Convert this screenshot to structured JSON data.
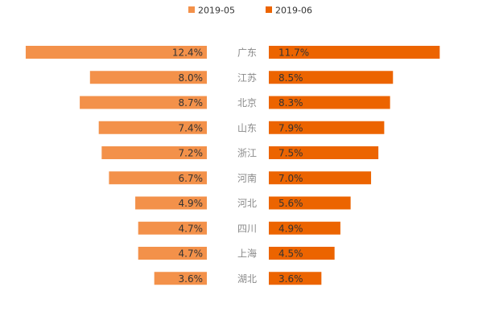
{
  "chart_data": {
    "type": "bar",
    "orientation": "butterfly-horizontal",
    "categories": [
      "广东",
      "江苏",
      "北京",
      "山东",
      "浙江",
      "河南",
      "河北",
      "四川",
      "上海",
      "湖北"
    ],
    "series": [
      {
        "name": "2019-05",
        "color": "#f3914a",
        "side": "left",
        "values": [
          12.4,
          8.0,
          8.7,
          7.4,
          7.2,
          6.7,
          4.9,
          4.7,
          4.7,
          3.6
        ],
        "labels": [
          "12.4%",
          "8.0%",
          "8.7%",
          "7.4%",
          "7.2%",
          "6.7%",
          "4.9%",
          "4.7%",
          "4.7%",
          "3.6%"
        ]
      },
      {
        "name": "2019-06",
        "color": "#ec6400",
        "side": "right",
        "values": [
          11.7,
          8.5,
          8.3,
          7.9,
          7.5,
          7.0,
          5.6,
          4.9,
          4.5,
          3.6
        ],
        "labels": [
          "11.7%",
          "8.5%",
          "8.3%",
          "7.9%",
          "7.5%",
          "7.0%",
          "5.6%",
          "4.9%",
          "4.5%",
          "3.6%"
        ]
      }
    ],
    "unit": "%",
    "legend_position": "top-center",
    "title": "",
    "xlabel": "",
    "ylabel": "",
    "grid": false
  }
}
